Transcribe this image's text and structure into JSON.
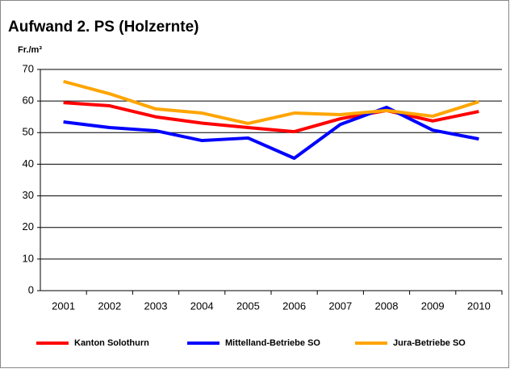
{
  "chart_data": {
    "type": "line",
    "title": "Aufwand 2. PS (Holzernte)",
    "y_label": "Fr./m³",
    "categories": [
      "2001",
      "2002",
      "2003",
      "2004",
      "2005",
      "2006",
      "2007",
      "2008",
      "2009",
      "2010"
    ],
    "series": [
      {
        "name": "Kanton Solothurn",
        "color": "#ff0000",
        "values": [
          59.5,
          58.5,
          55,
          53,
          51.6,
          50.3,
          54.4,
          57,
          53.7,
          56.7
        ]
      },
      {
        "name": "Mittelland-Betriebe SO",
        "color": "#0000ff",
        "values": [
          53.4,
          51.6,
          50.6,
          47.5,
          48.3,
          41.9,
          52.6,
          58,
          50.8,
          48
        ]
      },
      {
        "name": "Jura-Betriebe SO",
        "color": "#ffa500",
        "values": [
          66.2,
          62.3,
          57.5,
          56.2,
          52.9,
          56.2,
          55.7,
          57,
          55.2,
          59.8
        ]
      }
    ],
    "ylim": [
      0,
      70
    ],
    "yticks": [
      0,
      10,
      20,
      30,
      40,
      50,
      60,
      70
    ],
    "grid": true,
    "legend": "bottom"
  }
}
